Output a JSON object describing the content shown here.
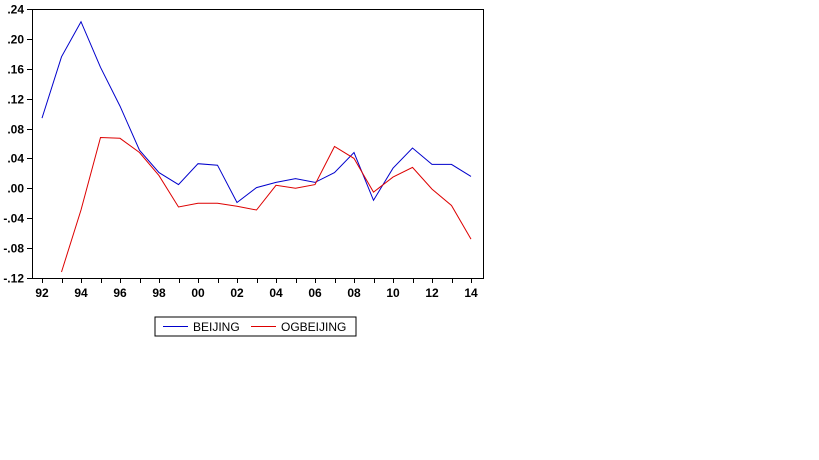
{
  "chart_data": {
    "type": "line",
    "title": "",
    "xlabel": "",
    "ylabel": "",
    "x": [
      "92",
      "93",
      "94",
      "95",
      "96",
      "97",
      "98",
      "99",
      "00",
      "01",
      "02",
      "03",
      "04",
      "05",
      "06",
      "07",
      "08",
      "09",
      "10",
      "11",
      "12",
      "13",
      "14"
    ],
    "x_tick_labels": [
      "92",
      "94",
      "96",
      "98",
      "00",
      "02",
      "04",
      "06",
      "08",
      "10",
      "12",
      "14"
    ],
    "y_tick_labels": [
      ".24",
      ".20",
      ".16",
      ".12",
      ".08",
      ".04",
      ".00",
      "-.04",
      "-.08",
      "-.12"
    ],
    "y_ticks": [
      0.24,
      0.2,
      0.16,
      0.12,
      0.08,
      0.04,
      0.0,
      -0.04,
      -0.08,
      -0.12
    ],
    "ylim": [
      -0.12,
      0.24
    ],
    "grid": false,
    "legend_position": "bottom",
    "series": [
      {
        "name": "BEIJING",
        "color": "#0000cc",
        "values": [
          0.094,
          0.176,
          0.223,
          0.162,
          0.11,
          0.051,
          0.021,
          0.005,
          0.033,
          0.031,
          -0.019,
          0.001,
          0.008,
          0.013,
          0.008,
          0.021,
          0.048,
          -0.016,
          0.027,
          0.054,
          0.032,
          0.032,
          0.016
        ]
      },
      {
        "name": "OGBEIJING",
        "color": "#dd0000",
        "values": [
          null,
          -0.112,
          -0.029,
          0.068,
          0.067,
          0.048,
          0.017,
          -0.025,
          -0.02,
          -0.02,
          -0.024,
          -0.029,
          0.004,
          0.0,
          0.005,
          0.056,
          0.04,
          -0.005,
          0.015,
          0.028,
          -0.001,
          -0.023,
          -0.068
        ]
      }
    ]
  },
  "legend": {
    "items": [
      {
        "label": "BEIJING",
        "color": "#0000cc"
      },
      {
        "label": "OGBEIJING",
        "color": "#dd0000"
      }
    ]
  }
}
